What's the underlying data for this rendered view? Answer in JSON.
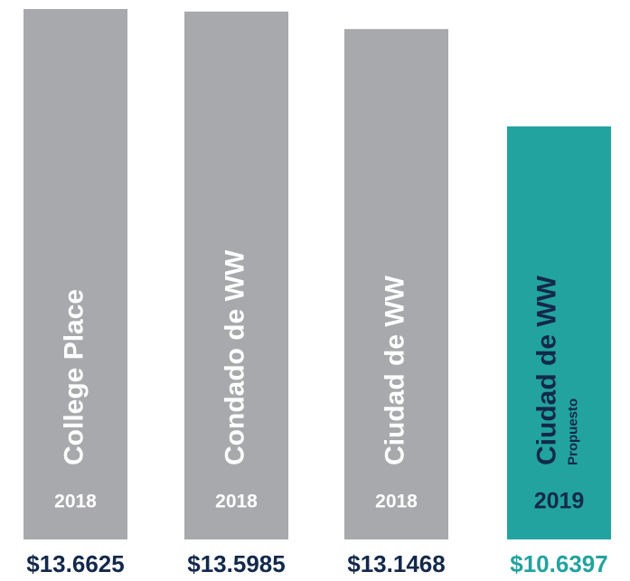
{
  "chart_data": {
    "type": "bar",
    "categories": [
      "College Place",
      "Condado de WW",
      "Ciudad de WW",
      "Ciudad de WW"
    ],
    "sublabels": [
      null,
      null,
      null,
      "Propuesto"
    ],
    "years": [
      "2018",
      "2018",
      "2018",
      "2019"
    ],
    "values": [
      13.6625,
      13.5985,
      13.1468,
      10.6397
    ],
    "value_labels": [
      "$13.6625",
      "$13.5985",
      "$13.1468",
      "$10.6397"
    ],
    "colors": [
      "#a7a9ac",
      "#a7a9ac",
      "#a7a9ac",
      "#22a39f"
    ],
    "text_colors": [
      "#ffffff",
      "#ffffff",
      "#ffffff",
      "#13294b"
    ],
    "value_label_colors": [
      "#13294b",
      "#13294b",
      "#13294b",
      "#22a39f"
    ]
  }
}
